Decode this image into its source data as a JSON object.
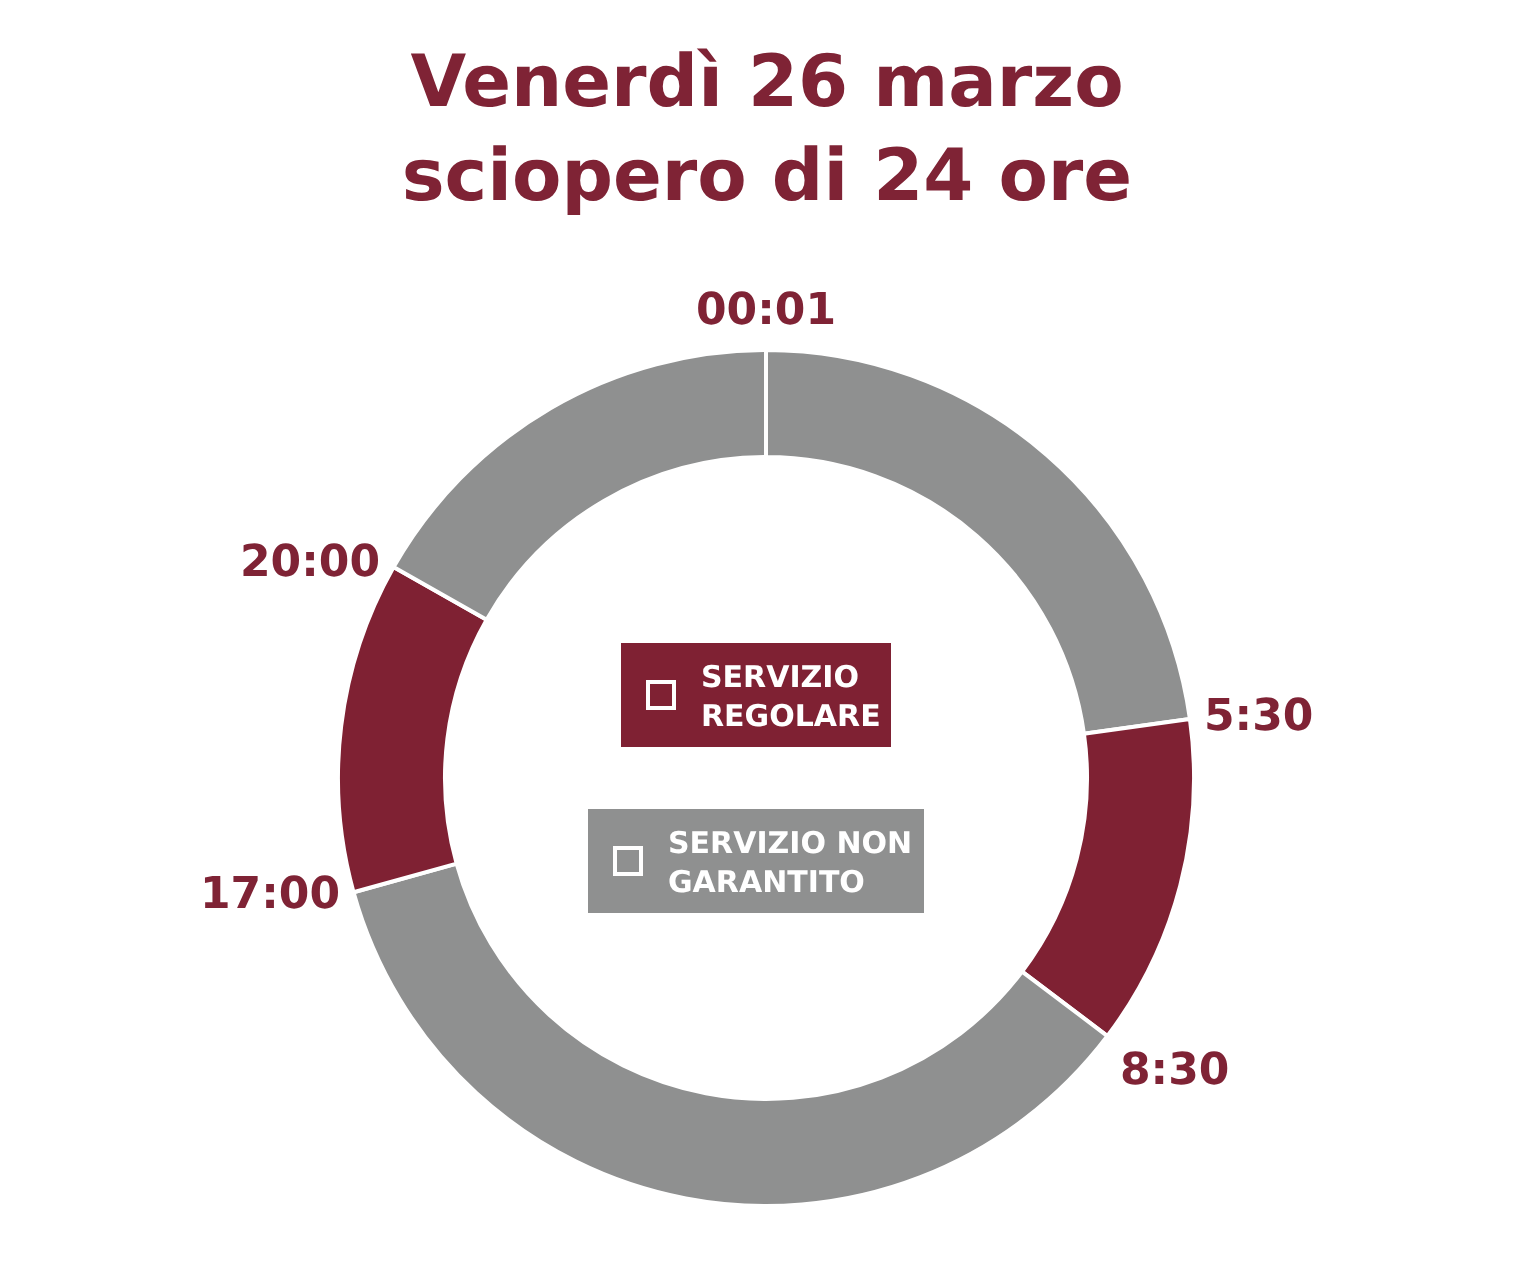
{
  "chart_data": {
    "type": "donut",
    "title": "Venerdì 26 marzo sciopero di 24 ore",
    "categories": [
      "SERVIZIO NON GARANTITO",
      "SERVIZIO REGOLARE",
      null,
      null,
      null
    ],
    "values": [
      22.8,
      12.5,
      35.4,
      12.5,
      16.8
    ],
    "colors": [
      "#8f9090",
      "#7f2133",
      "#8f9090",
      "#7f2133",
      "#8f9090"
    ],
    "annotations": [
      "00:01",
      "5:30",
      "8:30",
      "17:00",
      "20:00"
    ],
    "legend": "center"
  }
}
